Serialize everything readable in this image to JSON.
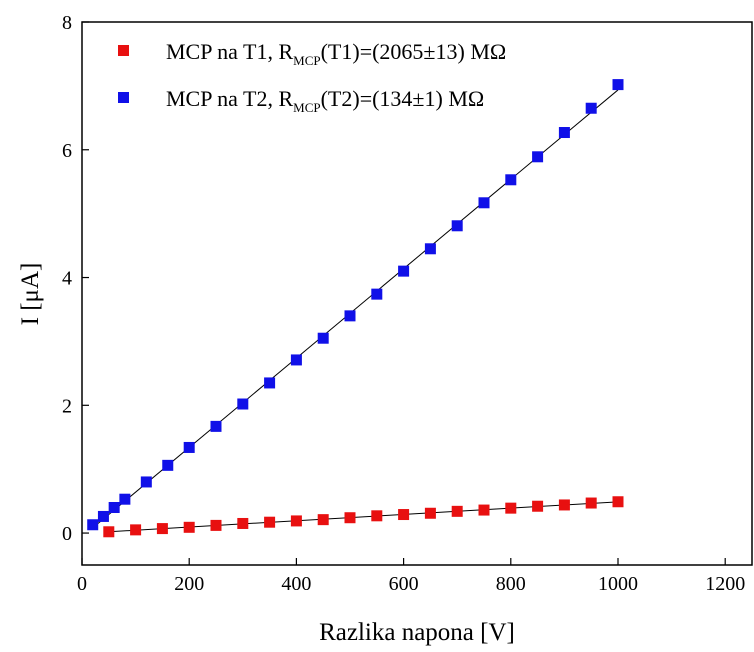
{
  "chart_data": {
    "type": "scatter",
    "xlabel": "Razlika napona [V]",
    "ylabel": "I [μA]",
    "xlim": [
      0,
      1250
    ],
    "ylim": [
      -0.5,
      8
    ],
    "xticks": [
      0,
      200,
      400,
      600,
      800,
      1000,
      1200
    ],
    "yticks": [
      0,
      2,
      4,
      6,
      8
    ],
    "x_tick_labels": [
      "0",
      "200",
      "400",
      "600",
      "800",
      "1000",
      "1200"
    ],
    "y_tick_labels": [
      "0",
      "2",
      "4",
      "6",
      "8"
    ],
    "legend_position": "top-left",
    "grid": false,
    "series": [
      {
        "name": "MCP na T1, R_MCP(T1)=(2065±13) MΩ",
        "legend_parts": {
          "main": "MCP na T1, R",
          "sub": "MCP",
          "rest": "(T1)=(2065±13) MΩ"
        },
        "color": "#e81010",
        "marker": "square",
        "fit_line": true,
        "x": [
          50,
          100,
          150,
          200,
          250,
          300,
          350,
          400,
          450,
          500,
          550,
          600,
          650,
          700,
          750,
          800,
          850,
          900,
          950,
          1000
        ],
        "y": [
          0.02,
          0.05,
          0.07,
          0.09,
          0.12,
          0.15,
          0.17,
          0.19,
          0.21,
          0.24,
          0.27,
          0.29,
          0.31,
          0.34,
          0.36,
          0.39,
          0.42,
          0.44,
          0.47,
          0.49
        ]
      },
      {
        "name": "MCP na T2, R_MCP(T2)=(134±1) MΩ",
        "legend_parts": {
          "main": "MCP na T2, R",
          "sub": "MCP",
          "rest": "(T2)=(134±1) MΩ"
        },
        "color": "#1010e8",
        "marker": "square",
        "fit_line": true,
        "x": [
          20,
          40,
          60,
          80,
          120,
          160,
          200,
          250,
          300,
          350,
          400,
          450,
          500,
          550,
          600,
          650,
          700,
          750,
          800,
          850,
          900,
          950,
          1000
        ],
        "y": [
          0.13,
          0.26,
          0.4,
          0.53,
          0.8,
          1.06,
          1.34,
          1.67,
          2.02,
          2.35,
          2.71,
          3.05,
          3.4,
          3.74,
          4.1,
          4.45,
          4.81,
          5.17,
          5.53,
          5.89,
          6.27,
          6.65,
          7.02
        ]
      }
    ]
  }
}
